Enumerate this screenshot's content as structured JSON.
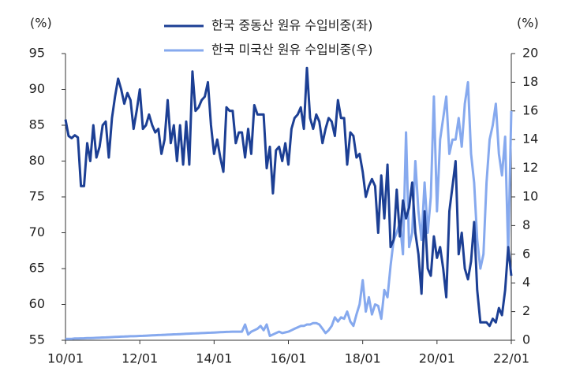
{
  "chart_data": {
    "type": "line",
    "legend_position": "top",
    "y_label": "(%)",
    "y2_label": "(%)",
    "categories": [
      "10/01",
      null,
      null,
      null,
      null,
      null,
      null,
      null,
      null,
      null,
      null,
      null,
      null,
      null,
      null,
      null,
      null,
      null,
      null,
      null,
      null,
      null,
      null,
      null,
      "12/01",
      null,
      null,
      null,
      null,
      null,
      null,
      null,
      null,
      null,
      null,
      null,
      null,
      null,
      null,
      null,
      null,
      null,
      null,
      null,
      null,
      null,
      null,
      null,
      "14/01",
      null,
      null,
      null,
      null,
      null,
      null,
      null,
      null,
      null,
      null,
      null,
      null,
      null,
      null,
      null,
      null,
      null,
      null,
      null,
      null,
      null,
      null,
      null,
      "16/01",
      null,
      null,
      null,
      null,
      null,
      null,
      null,
      null,
      null,
      null,
      null,
      null,
      null,
      null,
      null,
      null,
      null,
      null,
      null,
      null,
      null,
      null,
      null,
      "18/01",
      null,
      null,
      null,
      null,
      null,
      null,
      null,
      null,
      null,
      null,
      null,
      null,
      null,
      null,
      null,
      null,
      null,
      null,
      null,
      null,
      null,
      null,
      null,
      "20/01",
      null,
      null,
      null,
      null,
      null,
      null,
      null,
      null,
      null,
      null,
      null,
      null,
      null,
      null,
      null,
      null,
      null,
      null,
      null,
      null,
      null,
      null,
      null,
      "22/01"
    ],
    "series": [
      {
        "name": "한국 중동산 원유 수입비중(좌)",
        "color": "#1c3f94",
        "axis": "y",
        "values": [
          85.8,
          83.5,
          83.2,
          83.6,
          83.3,
          76.5,
          76.5,
          82.5,
          80,
          85,
          80.5,
          82,
          85,
          85.5,
          80.5,
          86,
          89,
          91.5,
          90,
          88,
          89.5,
          88.5,
          84.5,
          87,
          90,
          84.5,
          85,
          86.5,
          85,
          84,
          84.5,
          81,
          83,
          88.5,
          82.5,
          85,
          80,
          85,
          79.5,
          85.5,
          79.5,
          92.5,
          87,
          87.5,
          88.5,
          89,
          91,
          85,
          81,
          83,
          80.5,
          78.5,
          87.5,
          87,
          87,
          82.5,
          84,
          84,
          80.5,
          84.5,
          81,
          87.8,
          86.5,
          86.5,
          86.5,
          79,
          82,
          75.5,
          81.5,
          82,
          80,
          82.5,
          79.5,
          84.5,
          86,
          86.5,
          87.5,
          84.5,
          93,
          86,
          84.5,
          86.5,
          85.5,
          82.5,
          84.5,
          86,
          85.5,
          83.5,
          88.5,
          86,
          86,
          79.5,
          84,
          83.5,
          80.5,
          81,
          78.5,
          75,
          76.5,
          77.5,
          76.5,
          70,
          78,
          72,
          79.5,
          68,
          69,
          76,
          69.5,
          74.5,
          72,
          73.5,
          77,
          70,
          67,
          61.5,
          73,
          65,
          64,
          69.5,
          66.5,
          68,
          65,
          61,
          73,
          76.5,
          80,
          67,
          70,
          65,
          63.5,
          66,
          71.5,
          62,
          57.5,
          57.5,
          57.5,
          57,
          58,
          57.5,
          59.5,
          58.5,
          62,
          68,
          64
        ]
      },
      {
        "name": "한국 미국산 원유 수입비중(우)",
        "color": "#86a9ee",
        "axis": "y2",
        "values": [
          0.1,
          0.1,
          0.1,
          0.12,
          0.12,
          0.13,
          0.14,
          0.15,
          0.15,
          0.16,
          0.17,
          0.18,
          0.19,
          0.2,
          0.21,
          0.22,
          0.23,
          0.24,
          0.25,
          0.26,
          0.27,
          0.28,
          0.28,
          0.29,
          0.3,
          0.31,
          0.32,
          0.33,
          0.34,
          0.35,
          0.36,
          0.37,
          0.38,
          0.39,
          0.4,
          0.41,
          0.42,
          0.43,
          0.44,
          0.45,
          0.46,
          0.47,
          0.48,
          0.49,
          0.5,
          0.51,
          0.52,
          0.53,
          0.54,
          0.55,
          0.56,
          0.57,
          0.58,
          0.59,
          0.6,
          0.6,
          0.6,
          0.6,
          1.1,
          0.4,
          0.6,
          0.7,
          0.8,
          1.0,
          0.7,
          1.1,
          0.3,
          0.4,
          0.5,
          0.6,
          0.5,
          0.55,
          0.6,
          0.7,
          0.8,
          0.9,
          1.0,
          1.0,
          1.1,
          1.1,
          1.2,
          1.2,
          1.1,
          0.8,
          0.5,
          0.7,
          1.0,
          1.6,
          1.3,
          1.6,
          1.5,
          2.0,
          1.3,
          1.0,
          1.8,
          2.5,
          4.2,
          2.0,
          3.0,
          1.8,
          2.5,
          2.4,
          1.5,
          3.5,
          3.0,
          5.2,
          7.0,
          7.5,
          8.2,
          6.0,
          14.5,
          6.5,
          7.5,
          12.5,
          9.0,
          7.0,
          11.0,
          7.5,
          10.0,
          17.0,
          9.0,
          14.0,
          15.5,
          17.0,
          13.0,
          14.0,
          14.0,
          15.5,
          13.5,
          16.5,
          18.0,
          13.0,
          11,
          7,
          5,
          6,
          11,
          14,
          15,
          16.5,
          13,
          11.5,
          14.2,
          6,
          16
        ]
      }
    ],
    "ylim": [
      55,
      95
    ],
    "yticks": [
      55,
      60,
      65,
      70,
      75,
      80,
      85,
      90,
      95
    ],
    "y2lim": [
      0,
      20
    ],
    "y2ticks": [
      0,
      2,
      4,
      6,
      8,
      10,
      12,
      14,
      16,
      18,
      20
    ]
  }
}
